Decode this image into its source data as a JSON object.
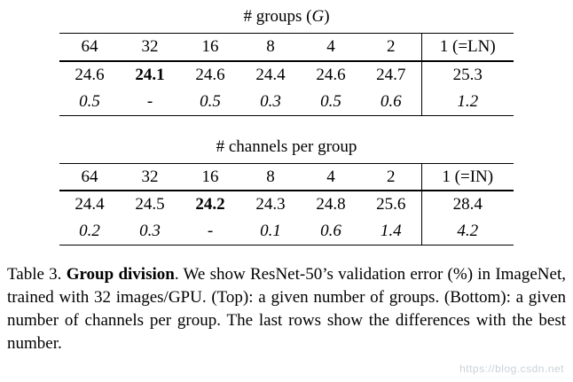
{
  "tables": [
    {
      "title_prefix": "# groups (",
      "title_var": "G",
      "title_suffix": ")",
      "headers": [
        "64",
        "32",
        "16",
        "8",
        "4",
        "2",
        "1 (=LN)"
      ],
      "error_row": [
        "24.6",
        "24.1",
        "24.6",
        "24.4",
        "24.6",
        "24.7",
        "25.3"
      ],
      "diff_row": [
        "0.5",
        "-",
        "0.5",
        "0.3",
        "0.5",
        "0.6",
        "1.2"
      ]
    },
    {
      "title_prefix": "# channels per group",
      "title_var": "",
      "title_suffix": "",
      "headers": [
        "64",
        "32",
        "16",
        "8",
        "4",
        "2",
        "1 (=IN)"
      ],
      "error_row": [
        "24.4",
        "24.5",
        "24.2",
        "24.3",
        "24.8",
        "25.6",
        "28.4"
      ],
      "diff_row": [
        "0.2",
        "0.3",
        "-",
        "0.1",
        "0.6",
        "1.4",
        "4.2"
      ]
    }
  ],
  "caption": {
    "prefix": "Table 3. ",
    "bold": "Group division",
    "rest": ".  We show ResNet-50’s validation error (%) in ImageNet, trained with 32 images/GPU. (Top): a given number of groups.  (Bottom): a given number of channels per group. The last rows show the differences with the best number."
  },
  "watermark": {
    "text": "https://blog.csdn.net"
  }
}
